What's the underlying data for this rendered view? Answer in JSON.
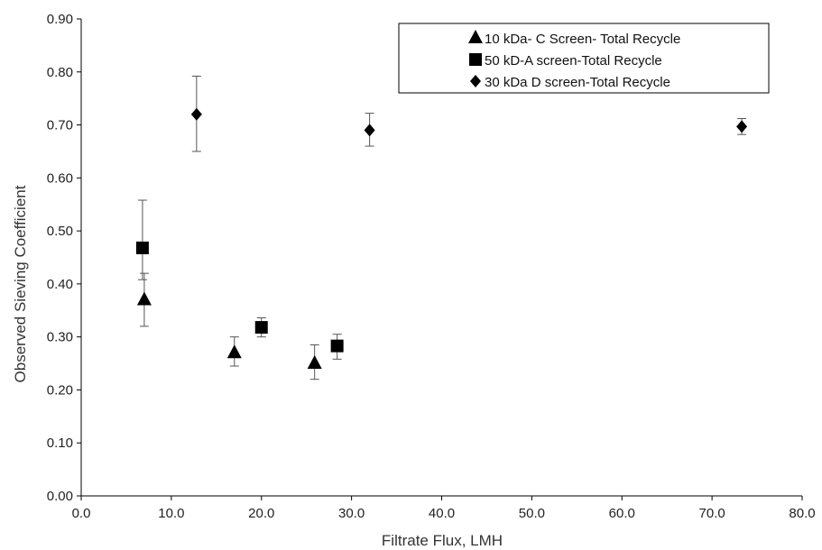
{
  "chart_data": {
    "type": "scatter",
    "xlabel": "Filtrate Flux, LMH",
    "ylabel": "Observed Sieving Coefficient",
    "xlim": [
      0,
      80
    ],
    "ylim": [
      0,
      0.9
    ],
    "x_ticks": [
      "0.0",
      "10.0",
      "20.0",
      "30.0",
      "40.0",
      "50.0",
      "60.0",
      "70.0",
      "80.0"
    ],
    "y_ticks": [
      "0.00",
      "0.10",
      "0.20",
      "0.30",
      "0.40",
      "0.50",
      "0.60",
      "0.70",
      "0.80",
      "0.90"
    ],
    "grid": false,
    "legend_position": "top-right",
    "colors": {
      "marker": "#000000",
      "axis": "#000000",
      "error_bar": "#555555"
    },
    "series": [
      {
        "name": "10 kDa- C Screen- Total Recycle",
        "marker": "triangle",
        "points": [
          {
            "x": 7.0,
            "y": 0.37,
            "err_low": 0.05,
            "err_high": 0.05
          },
          {
            "x": 17.0,
            "y": 0.27,
            "err_low": 0.025,
            "err_high": 0.03
          },
          {
            "x": 25.9,
            "y": 0.25,
            "err_low": 0.03,
            "err_high": 0.035
          }
        ]
      },
      {
        "name": "50 kD-A screen-Total Recycle",
        "marker": "square",
        "points": [
          {
            "x": 6.8,
            "y": 0.468,
            "err_low": 0.06,
            "err_high": 0.09
          },
          {
            "x": 20.0,
            "y": 0.318,
            "err_low": 0.018,
            "err_high": 0.018
          },
          {
            "x": 28.4,
            "y": 0.283,
            "err_low": 0.025,
            "err_high": 0.022
          }
        ]
      },
      {
        "name": "30 kDa D screen-Total Recycle",
        "marker": "diamond",
        "points": [
          {
            "x": 12.8,
            "y": 0.72,
            "err_low": 0.07,
            "err_high": 0.072
          },
          {
            "x": 32.0,
            "y": 0.69,
            "err_low": 0.03,
            "err_high": 0.032
          },
          {
            "x": 73.3,
            "y": 0.697,
            "err_low": 0.015,
            "err_high": 0.015
          }
        ]
      }
    ]
  }
}
